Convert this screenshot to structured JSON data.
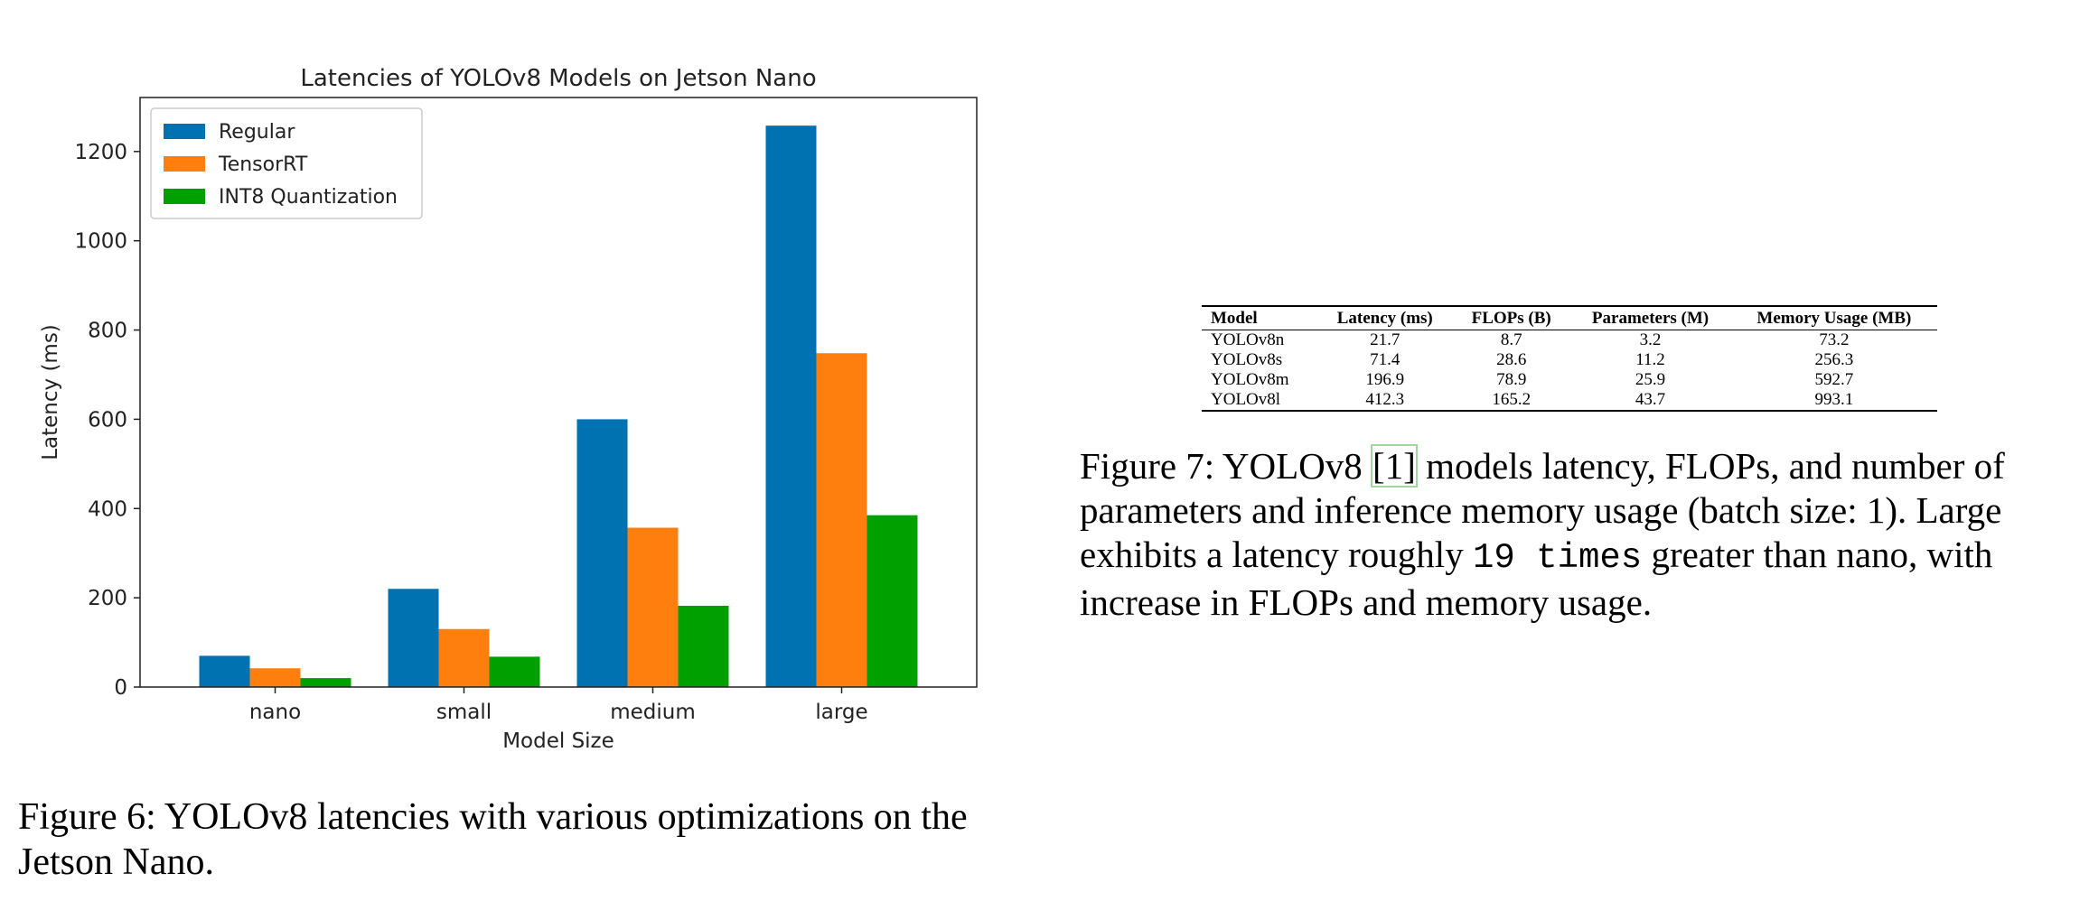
{
  "chart_data": {
    "type": "bar",
    "title": "Latencies of YOLOv8 Models on Jetson Nano",
    "xlabel": "Model Size",
    "ylabel": "Latency (ms)",
    "categories": [
      "nano",
      "small",
      "medium",
      "large"
    ],
    "series": [
      {
        "name": "Regular",
        "color": "#0072b2",
        "values": [
          70,
          220,
          600,
          1258
        ]
      },
      {
        "name": "TensorRT",
        "color": "#ff7f0e",
        "values": [
          42,
          130,
          357,
          748
        ]
      },
      {
        "name": "INT8 Quantization",
        "color": "#00a000",
        "values": [
          20,
          68,
          182,
          385
        ]
      }
    ],
    "ylim": [
      0,
      1321
    ],
    "yticks": [
      "0",
      "200",
      "400",
      "600",
      "800",
      "1000",
      "1200"
    ],
    "legend_position": "top-left",
    "grid": false
  },
  "captions": {
    "fig6": "Figure 6: YOLOv8 latencies with various optimizations on the Jetson Nano.",
    "fig7_prefix": "Figure 7: YOLOv8 ",
    "fig7_ref": "[1]",
    "fig7_mid": " models latency, FLOPs, and number of parameters and inference memory usage (batch size: 1). Large exhibits a latency roughly ",
    "fig7_code": "19 times",
    "fig7_suffix": " greater than nano, with increase in FLOPs and memory usage."
  },
  "table": {
    "headers": [
      "Model",
      "Latency (ms)",
      "FLOPs (B)",
      "Parameters (M)",
      "Memory Usage (MB)"
    ],
    "rows": [
      [
        "YOLOv8n",
        "21.7",
        "8.7",
        "3.2",
        "73.2"
      ],
      [
        "YOLOv8s",
        "71.4",
        "28.6",
        "11.2",
        "256.3"
      ],
      [
        "YOLOv8m",
        "196.9",
        "78.9",
        "25.9",
        "592.7"
      ],
      [
        "YOLOv8l",
        "412.3",
        "165.2",
        "43.7",
        "993.1"
      ]
    ]
  }
}
